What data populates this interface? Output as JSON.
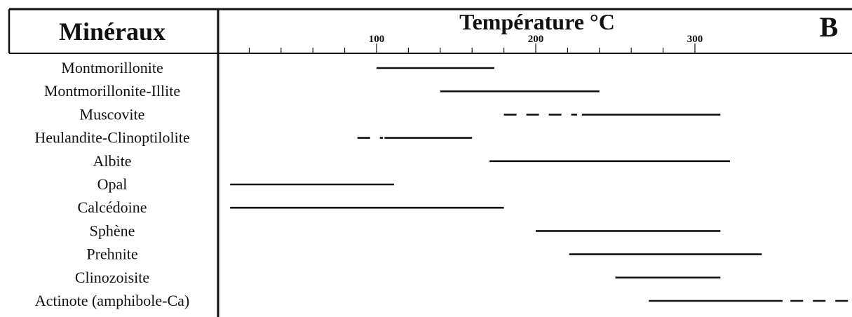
{
  "header": {
    "minerals_label": "Minéraux",
    "temperature_label": "Température °C",
    "panel_letter": "B"
  },
  "chart_data": {
    "type": "range",
    "title": "",
    "xlabel": "Température °C",
    "ylabel": "Minéraux",
    "xlim": [
      19,
      316
    ],
    "ticks": [
      100,
      200,
      300
    ],
    "minor_tick_step": 20,
    "colors": {
      "line": "#111111",
      "border": "#111111",
      "background": "#ffffff"
    },
    "minerals": [
      {
        "name": "Montmorillonite",
        "segments": [
          {
            "from": 100,
            "to": 174,
            "style": "solid"
          }
        ]
      },
      {
        "name": "Montmorillonite-Illite",
        "segments": [
          {
            "from": 140,
            "to": 240,
            "style": "solid"
          }
        ]
      },
      {
        "name": "Muscovite",
        "segments": [
          {
            "from": 180,
            "to": 226,
            "style": "dashed"
          },
          {
            "from": 229,
            "to": 316,
            "style": "solid"
          }
        ]
      },
      {
        "name": "Heulandite-Clinoptilolite",
        "segments": [
          {
            "from": 88,
            "to": 104,
            "style": "dashed"
          },
          {
            "from": 105,
            "to": 160,
            "style": "solid"
          }
        ]
      },
      {
        "name": "Albite",
        "segments": [
          {
            "from": 171,
            "to": 322,
            "style": "solid"
          }
        ]
      },
      {
        "name": "Opal",
        "segments": [
          {
            "from": 8,
            "to": 111,
            "style": "solid"
          }
        ]
      },
      {
        "name": "Calcédoine",
        "segments": [
          {
            "from": 8,
            "to": 180,
            "style": "solid"
          }
        ]
      },
      {
        "name": "Sphène",
        "segments": [
          {
            "from": 200,
            "to": 316,
            "style": "solid"
          }
        ]
      },
      {
        "name": "Prehnite",
        "segments": [
          {
            "from": 221,
            "to": 342,
            "style": "solid"
          }
        ]
      },
      {
        "name": "Clinozoisite",
        "segments": [
          {
            "from": 250,
            "to": 316,
            "style": "solid"
          }
        ]
      },
      {
        "name": "Actinote (amphibole-Ca)",
        "segments": [
          {
            "from": 271,
            "to": 355,
            "style": "solid"
          },
          {
            "from": 360,
            "to": 400,
            "style": "dashed"
          }
        ]
      }
    ]
  }
}
